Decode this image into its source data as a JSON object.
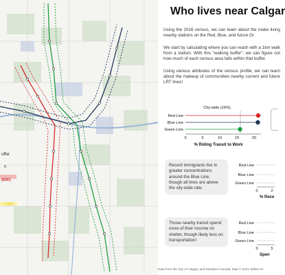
{
  "title": "Who lives near Calgar",
  "intro": [
    "Using the 2016 census, we can learn about the make living nearby stations on the Red, Blue, and future Gr",
    "We start by calculating where you can reach with a 1km walk from a station. With this \"walking buffer\", we can figure out how much of each census area falls within that buffer.",
    "Using various attributes of the census profile, we can learn about the makeup of communities nearby current and future LRT lines!"
  ],
  "map_legend": {
    "buffer_text": "uffer",
    "n_text": "n",
    "badge_text": "(83K)"
  },
  "colors": {
    "red": "#d62828",
    "blue": "#1d3557",
    "green": "#1a9e3b",
    "ref": "#999999"
  },
  "chart_transit": {
    "type": "dot",
    "categories": [
      "Red Line",
      "Blue Line",
      "Green Line"
    ],
    "values": [
      21.2,
      21.1,
      15.9
    ],
    "reference": 16,
    "reference_label": "City-wide (16%)",
    "xlim": [
      0,
      22
    ],
    "ticks": [
      "0",
      "5",
      "10",
      "15",
      "20"
    ],
    "xlabel": "% Riding Transit to Work"
  },
  "box_immigrants": "Recent immigrants live in greater concentrations around the Blue Line, though all lines are above the city-wide rate.",
  "chart_immigrants": {
    "categories": [
      "Red Line",
      "Blue Line",
      "Green Line"
    ],
    "ticks": [
      "0",
      "2"
    ],
    "xlabel": "% Rece"
  },
  "box_shelter": "Those nearby transit spend more of their income on shelter, though likely less on transportation!",
  "chart_shelter": {
    "categories": [
      "Red Line",
      "Blue Line",
      "Green Line"
    ],
    "ticks": [
      "0",
      "5"
    ],
    "xlabel": "Spen"
  },
  "footer": "Data from the City of Calgary and Statistics Canada. Map © 2021 Willem Kl"
}
